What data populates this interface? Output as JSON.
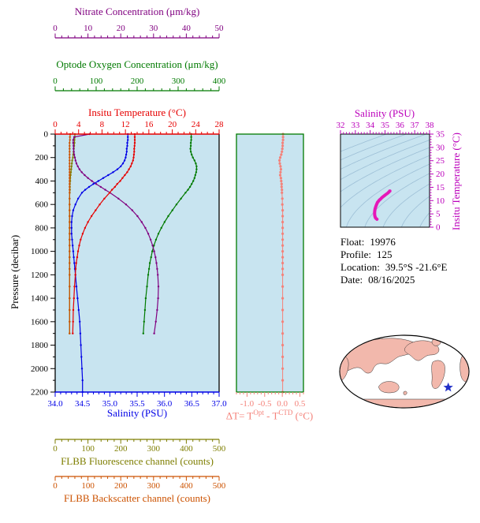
{
  "colors": {
    "nitrate": "#800080",
    "oxygen": "#007A00",
    "temperature": "#E60000",
    "salinity": "#0000E6",
    "fluorescence": "#7E7E00",
    "backscatter": "#CC5200",
    "delta_t": "#F4827A",
    "ts": "#BB00BB",
    "ts_curve": "#E618B8",
    "panel_bg": "#C8E4F0",
    "contour": "#9DBFD6",
    "axis": "#000000",
    "frame_mid": "#007A00",
    "map_land": "#F2B8AC",
    "map_ocean": "#FFFFFF",
    "map_outline": "#000000",
    "marker": "#2230C8"
  },
  "chart_data": [
    {
      "id": "profile-plot",
      "type": "line",
      "y_axis": {
        "label": "Pressure (decibar)",
        "lim": [
          0,
          2200
        ],
        "minor_step": 100,
        "tick_values": [
          0,
          200,
          400,
          600,
          800,
          1000,
          1200,
          1400,
          1600,
          1800,
          2000,
          2200
        ],
        "tick_labels": [
          "0",
          "200",
          "400",
          "600",
          "800",
          "1000",
          "1200",
          "1400",
          "1600",
          "1800",
          "2000",
          "2200"
        ]
      },
      "x_axes": {
        "nitrate": {
          "label": "Nitrate Concentration (μm/kg)",
          "color_key": "nitrate",
          "lim": [
            0,
            50
          ],
          "minor_step": 2,
          "tick_values": [
            0,
            10,
            20,
            30,
            40,
            50
          ],
          "tick_labels": [
            "0",
            "10",
            "20",
            "30",
            "40",
            "50"
          ]
        },
        "oxygen": {
          "label": "Optode Oxygen Concentration (μm/kg)",
          "color_key": "oxygen",
          "lim": [
            0,
            400
          ],
          "minor_step": 20,
          "tick_values": [
            0,
            100,
            200,
            300,
            400
          ],
          "tick_labels": [
            "0",
            "100",
            "200",
            "300",
            "400"
          ]
        },
        "temperature": {
          "label": "Insitu Temperature (°C)",
          "color_key": "temperature",
          "lim": [
            0,
            28
          ],
          "minor_step": 1,
          "tick_values": [
            0,
            4,
            8,
            12,
            16,
            20,
            24,
            28
          ],
          "tick_labels": [
            "0",
            "4",
            "8",
            "12",
            "16",
            "20",
            "24",
            "28"
          ]
        },
        "salinity": {
          "label": "Salinity (PSU)",
          "color_key": "salinity",
          "lim": [
            34,
            37
          ],
          "minor_step": 0.1,
          "tick_values": [
            34,
            34.5,
            35,
            35.5,
            36,
            36.5,
            37
          ],
          "tick_labels": [
            "34.0",
            "34.5",
            "35.0",
            "35.5",
            "36.0",
            "36.5",
            "37.0"
          ]
        },
        "fluorescence": {
          "label": "FLBB Fluorescence channel (counts)",
          "color_key": "fluorescence",
          "lim": [
            0,
            500
          ],
          "minor_step": 20,
          "tick_values": [
            0,
            100,
            200,
            300,
            400,
            500
          ],
          "tick_labels": [
            "0",
            "100",
            "200",
            "300",
            "400",
            "500"
          ]
        },
        "backscatter": {
          "label": "FLBB Backscatter channel (counts)",
          "color_key": "backscatter",
          "lim": [
            0,
            500
          ],
          "minor_step": 20,
          "tick_values": [
            0,
            100,
            200,
            300,
            400,
            500
          ],
          "tick_labels": [
            "0",
            "100",
            "200",
            "300",
            "400",
            "500"
          ]
        }
      },
      "series": [
        {
          "name": "fluorescence",
          "axis": "fluorescence",
          "color_key": "fluorescence",
          "pressure": [
            0,
            25,
            50,
            75,
            100,
            125,
            150,
            175,
            200,
            225,
            250,
            275,
            300,
            325,
            350,
            375,
            400,
            425,
            450,
            475,
            500,
            550,
            600,
            650,
            700,
            750,
            800,
            850,
            900,
            950,
            1000,
            1050,
            1100,
            1150,
            1200,
            1300,
            1400,
            1500,
            1600,
            1700
          ],
          "values": [
            60,
            60,
            59,
            59,
            58,
            57,
            56,
            55,
            54,
            52,
            51,
            50,
            49,
            48,
            47,
            46,
            46,
            45,
            45,
            45,
            44.5,
            44,
            44,
            44,
            44,
            44,
            44,
            44,
            44,
            44,
            44,
            44,
            44,
            44,
            44,
            44,
            44,
            44,
            44,
            44
          ]
        },
        {
          "name": "backscatter",
          "axis": "backscatter",
          "color_key": "backscatter",
          "pressure": [
            0,
            25,
            50,
            75,
            100,
            125,
            150,
            175,
            200,
            225,
            250,
            275,
            300,
            325,
            350,
            375,
            400,
            425,
            450,
            475,
            500,
            550,
            600,
            650,
            700,
            750,
            800,
            850,
            900,
            950,
            1000,
            1050,
            1100,
            1150,
            1200,
            1300,
            1400,
            1500,
            1600,
            1700
          ],
          "values": [
            46,
            45,
            45,
            44,
            44,
            44,
            44,
            44,
            44,
            44,
            44,
            44,
            44,
            44,
            44,
            44,
            44,
            44,
            44,
            44,
            44,
            44,
            44,
            44,
            44,
            44,
            44,
            44,
            44,
            44,
            44,
            44,
            44,
            44,
            44,
            44,
            44,
            44,
            44,
            44
          ]
        },
        {
          "name": "oxygen",
          "axis": "oxygen",
          "color_key": "oxygen",
          "pressure": [
            0,
            25,
            50,
            75,
            100,
            125,
            150,
            175,
            200,
            225,
            250,
            275,
            300,
            325,
            350,
            375,
            400,
            425,
            450,
            475,
            500,
            550,
            600,
            650,
            700,
            750,
            800,
            850,
            900,
            950,
            1000,
            1050,
            1100,
            1150,
            1200,
            1300,
            1400,
            1500,
            1600,
            1700
          ],
          "values": [
            332,
            332,
            332,
            331,
            331,
            330,
            331,
            333,
            336,
            340,
            343,
            345,
            345,
            344,
            342,
            340,
            337,
            333,
            329,
            324,
            318,
            307,
            296,
            286,
            276,
            267,
            259,
            252,
            246,
            241,
            237,
            234,
            231,
            229,
            227,
            224,
            221,
            219,
            217,
            215
          ]
        },
        {
          "name": "nitrate",
          "axis": "nitrate",
          "color_key": "nitrate",
          "pressure": [
            0,
            25,
            50,
            75,
            100,
            125,
            150,
            175,
            200,
            225,
            250,
            275,
            300,
            325,
            350,
            375,
            400,
            425,
            450,
            475,
            500,
            550,
            600,
            650,
            700,
            750,
            800,
            850,
            900,
            950,
            1000,
            1050,
            1100,
            1150,
            1200,
            1300,
            1400,
            1500,
            1600,
            1700
          ],
          "values": [
            10.5,
            5.8,
            5.5,
            5.5,
            5.6,
            5.6,
            5.7,
            5.8,
            6.0,
            6.2,
            6.5,
            6.9,
            7.4,
            8.1,
            9.0,
            10.0,
            11.2,
            12.5,
            13.9,
            15.3,
            16.7,
            19.3,
            21.6,
            23.5,
            25.1,
            26.4,
            27.5,
            28.4,
            29.1,
            29.7,
            30.2,
            30.6,
            30.9,
            31.1,
            31.3,
            31.5,
            31.4,
            31.1,
            30.7,
            30.2
          ]
        },
        {
          "name": "salinity",
          "axis": "salinity",
          "color_key": "salinity",
          "pressure": [
            0,
            25,
            50,
            75,
            100,
            125,
            150,
            175,
            200,
            225,
            250,
            275,
            300,
            325,
            350,
            375,
            400,
            425,
            450,
            475,
            500,
            550,
            600,
            650,
            700,
            750,
            800,
            850,
            900,
            950,
            1000,
            1050,
            1100,
            1150,
            1200,
            1300,
            1400,
            1500,
            1600,
            1700,
            1800,
            1900,
            2000,
            2100,
            2200
          ],
          "values": [
            35.33,
            35.33,
            35.33,
            35.32,
            35.32,
            35.31,
            35.31,
            35.3,
            35.29,
            35.27,
            35.24,
            35.2,
            35.14,
            35.06,
            34.97,
            34.88,
            34.79,
            34.7,
            34.62,
            34.55,
            34.49,
            34.42,
            34.37,
            34.33,
            34.31,
            34.3,
            34.3,
            34.3,
            34.31,
            34.32,
            34.33,
            34.34,
            34.35,
            34.36,
            34.37,
            34.39,
            34.41,
            34.43,
            34.45,
            34.46,
            34.47,
            34.48,
            34.49,
            34.5,
            34.5
          ]
        },
        {
          "name": "temperature",
          "axis": "temperature",
          "color_key": "temperature",
          "pressure": [
            0,
            25,
            50,
            75,
            100,
            125,
            150,
            175,
            200,
            225,
            250,
            275,
            300,
            325,
            350,
            375,
            400,
            425,
            450,
            475,
            500,
            550,
            600,
            650,
            700,
            750,
            800,
            850,
            900,
            950,
            1000,
            1050,
            1100,
            1150,
            1200,
            1300,
            1400,
            1500,
            1600,
            1700
          ],
          "values": [
            13.6,
            13.6,
            13.6,
            13.6,
            13.55,
            13.5,
            13.5,
            13.45,
            13.4,
            13.3,
            13.1,
            12.9,
            12.6,
            12.3,
            11.9,
            11.5,
            11.1,
            10.6,
            10.2,
            9.7,
            9.3,
            8.4,
            7.6,
            6.9,
            6.2,
            5.6,
            5.1,
            4.7,
            4.35,
            4.1,
            3.9,
            3.75,
            3.6,
            3.5,
            3.45,
            3.3,
            3.2,
            3.1,
            3.05,
            3.0
          ]
        }
      ]
    },
    {
      "id": "delta-t-plot",
      "type": "scatter",
      "x_axis": {
        "label_parts": {
          "prefix": "ΔT= T",
          "sup1": "Opt",
          "mid": " - T",
          "sup2": "CTD",
          "suffix": " (°C)"
        },
        "lim": [
          -1.3,
          0.6
        ],
        "minor_step": 0.1,
        "tick_values": [
          -1,
          -0.5,
          0,
          0.5
        ],
        "tick_labels": [
          "-1.0",
          "-0.5",
          "0.0",
          "0.5"
        ]
      },
      "pressure": [
        0,
        25,
        50,
        75,
        100,
        125,
        150,
        175,
        200,
        225,
        250,
        275,
        300,
        325,
        350,
        375,
        400,
        425,
        450,
        475,
        500,
        550,
        600,
        650,
        700,
        750,
        800,
        850,
        900,
        950,
        1000,
        1050,
        1100,
        1150,
        1200,
        1300,
        1400,
        1500,
        1600,
        1700,
        1800,
        1900,
        2000,
        2100,
        2200
      ],
      "values": [
        0.02,
        0.02,
        0.02,
        0.01,
        0.01,
        0.0,
        -0.01,
        -0.03,
        -0.06,
        -0.08,
        -0.07,
        -0.05,
        -0.04,
        -0.05,
        -0.06,
        -0.04,
        -0.03,
        -0.02,
        -0.02,
        -0.01,
        -0.01,
        0.0,
        0.0,
        0.01,
        0.01,
        0.01,
        0.01,
        0.01,
        0.01,
        0.01,
        0.01,
        0.01,
        0.01,
        0.01,
        0.01,
        0.01,
        0.01,
        0.01,
        0.01,
        0.01,
        0.01,
        0.01,
        0.01,
        0.01,
        0.01
      ]
    },
    {
      "id": "ts-diagram",
      "type": "line",
      "x_axis": {
        "label": "Salinity (PSU)",
        "lim": [
          32,
          38
        ],
        "minor_step": 0.2,
        "tick_values": [
          32,
          33,
          34,
          35,
          36,
          37,
          38
        ],
        "tick_labels": [
          "32",
          "33",
          "34",
          "35",
          "36",
          "37",
          "38"
        ]
      },
      "y_axis": {
        "label": "Insitu Temperature (°C)",
        "lim": [
          0,
          35
        ],
        "minor_step": 1,
        "tick_values": [
          0,
          5,
          10,
          15,
          20,
          25,
          30,
          35
        ],
        "tick_labels": [
          "0",
          "5",
          "10",
          "15",
          "20",
          "25",
          "30",
          "35"
        ]
      },
      "contour_levels": [
        20,
        21,
        22,
        23,
        24,
        25,
        26,
        27,
        28,
        29,
        30
      ],
      "salinity": [
        35.33,
        35.33,
        35.33,
        35.32,
        35.32,
        35.31,
        35.31,
        35.3,
        35.29,
        35.27,
        35.24,
        35.2,
        35.14,
        35.06,
        34.97,
        34.88,
        34.79,
        34.7,
        34.62,
        34.55,
        34.49,
        34.42,
        34.37,
        34.33,
        34.31,
        34.3,
        34.3,
        34.3,
        34.31,
        34.32,
        34.33,
        34.34,
        34.35,
        34.36,
        34.37,
        34.39,
        34.41,
        34.43,
        34.45,
        34.46
      ],
      "temperature": [
        13.6,
        13.6,
        13.6,
        13.6,
        13.55,
        13.5,
        13.5,
        13.45,
        13.4,
        13.3,
        13.1,
        12.9,
        12.6,
        12.3,
        11.9,
        11.5,
        11.1,
        10.6,
        10.2,
        9.7,
        9.3,
        8.4,
        7.6,
        6.9,
        6.2,
        5.6,
        5.1,
        4.7,
        4.35,
        4.1,
        3.9,
        3.75,
        3.6,
        3.5,
        3.45,
        3.3,
        3.2,
        3.1,
        3.05,
        3.0
      ]
    }
  ],
  "float_info": {
    "lines": [
      {
        "label": "Float:",
        "value": "19976"
      },
      {
        "label": "Profile:",
        "value": "125"
      },
      {
        "label": "Location:",
        "value": "39.5°S -21.6°E"
      },
      {
        "label": "Date:",
        "value": "08/16/2025"
      }
    ]
  },
  "map": {
    "marker": {
      "lat": -39.5,
      "lon": -21.6,
      "symbol": "star"
    }
  }
}
